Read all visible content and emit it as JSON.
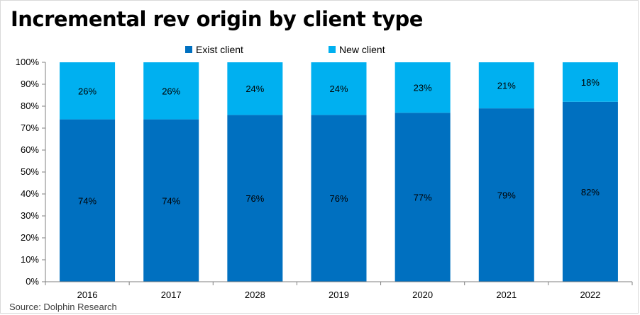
{
  "title": "Incremental rev origin by client type",
  "source": "Source:  Dolphin Research",
  "colors": {
    "exist": "#0070C0",
    "new": "#00B0F0",
    "axis": "#7f7f7f"
  },
  "chart_data": {
    "type": "bar",
    "stacked": true,
    "title": "Incremental rev origin by client type",
    "xlabel": "",
    "ylabel": "",
    "ylim": [
      0,
      100
    ],
    "ytick_labels": [
      "0%",
      "10%",
      "20%",
      "30%",
      "40%",
      "50%",
      "60%",
      "70%",
      "80%",
      "90%",
      "100%"
    ],
    "grid": false,
    "legend_position": "top-center",
    "categories": [
      "2016",
      "2017",
      "2028",
      "2019",
      "2020",
      "2021",
      "2022"
    ],
    "series": [
      {
        "name": "Exist client",
        "values": [
          74,
          74,
          76,
          76,
          77,
          79,
          82
        ],
        "labels": [
          "74%",
          "74%",
          "76%",
          "76%",
          "77%",
          "79%",
          "82%"
        ]
      },
      {
        "name": "New client",
        "values": [
          26,
          26,
          24,
          24,
          23,
          21,
          18
        ],
        "labels": [
          "26%",
          "26%",
          "24%",
          "24%",
          "23%",
          "21%",
          "18%"
        ]
      }
    ]
  }
}
